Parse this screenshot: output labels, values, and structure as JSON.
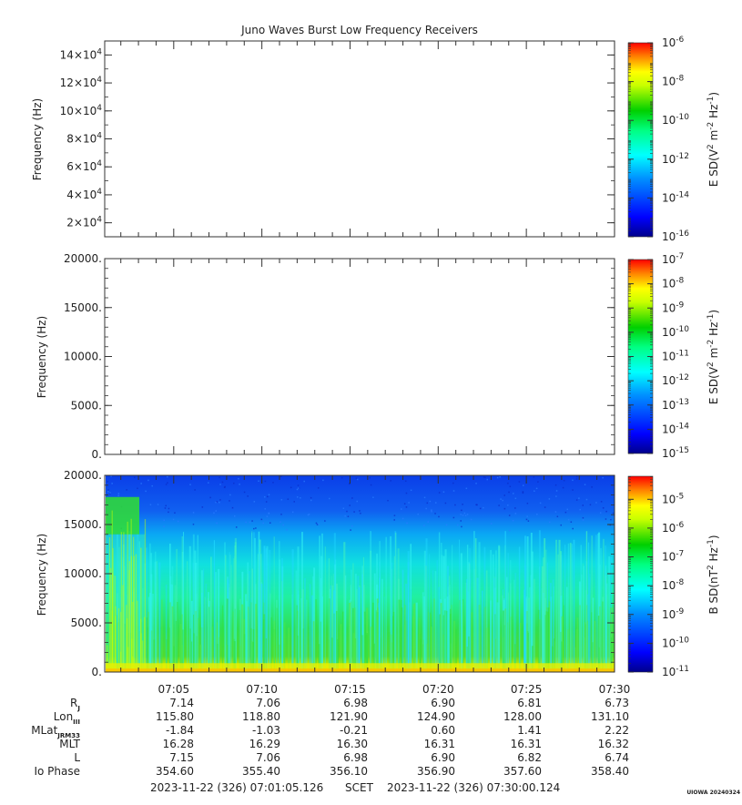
{
  "title": "Juno Waves Burst Low Frequency Receivers",
  "footer": {
    "start": "2023-11-22 (326) 07:01:05.126",
    "scet": "SCET",
    "end": "2023-11-22 (326) 07:30:00.124",
    "credit": "UIOWA 20240324"
  },
  "chart_data": [
    {
      "type": "heatmap",
      "title": "Juno Waves Burst Low Frequency Receivers",
      "ylabel": "Frequency (Hz)",
      "ylim": [
        10000,
        150000
      ],
      "yticks": [
        {
          "value": 20000,
          "label": "2×10",
          "exp": "4"
        },
        {
          "value": 40000,
          "label": "4×10",
          "exp": "4"
        },
        {
          "value": 60000,
          "label": "6×10",
          "exp": "4"
        },
        {
          "value": 80000,
          "label": "8×10",
          "exp": "4"
        },
        {
          "value": 100000,
          "label": "10×10",
          "exp": "4"
        },
        {
          "value": 120000,
          "label": "12×10",
          "exp": "4"
        },
        {
          "value": 140000,
          "label": "14×10",
          "exp": "4"
        }
      ],
      "xlim": [
        "07:01:05",
        "07:30:00"
      ],
      "data": "no data (blank)",
      "colorbar": {
        "label": "E SD(V",
        "label_parts": [
          "E SD(V",
          "2",
          " m",
          "-2",
          " Hz",
          "-1",
          ")"
        ],
        "scale": "log",
        "range": [
          -16,
          -6
        ],
        "ticks": [
          {
            "exp": -16
          },
          {
            "exp": -14
          },
          {
            "exp": -12
          },
          {
            "exp": -10
          },
          {
            "exp": -8
          },
          {
            "exp": -6
          }
        ],
        "tick_base": "10"
      }
    },
    {
      "type": "heatmap",
      "ylabel": "Frequency (Hz)",
      "ylim": [
        0,
        20000
      ],
      "yticks": [
        {
          "value": 0,
          "label": "0."
        },
        {
          "value": 5000,
          "label": "5000."
        },
        {
          "value": 10000,
          "label": "10000."
        },
        {
          "value": 15000,
          "label": "15000."
        },
        {
          "value": 20000,
          "label": "20000."
        }
      ],
      "xlim": [
        "07:01:05",
        "07:30:00"
      ],
      "data": "no data (blank)",
      "colorbar": {
        "label_parts": [
          "E SD(V",
          "2",
          " m",
          "-2",
          " Hz",
          "-1",
          ")"
        ],
        "scale": "log",
        "range": [
          -15,
          -7
        ],
        "ticks": [
          {
            "exp": -15
          },
          {
            "exp": -14
          },
          {
            "exp": -13
          },
          {
            "exp": -12
          },
          {
            "exp": -11
          },
          {
            "exp": -10
          },
          {
            "exp": -9
          },
          {
            "exp": -8
          },
          {
            "exp": -7
          }
        ],
        "tick_base": "10"
      }
    },
    {
      "type": "heatmap",
      "ylabel": "Frequency (Hz)",
      "ylim": [
        0,
        20000
      ],
      "yticks": [
        {
          "value": 0,
          "label": "0."
        },
        {
          "value": 5000,
          "label": "5000."
        },
        {
          "value": 10000,
          "label": "10000."
        },
        {
          "value": 15000,
          "label": "15000."
        },
        {
          "value": 20000,
          "label": "20000."
        }
      ],
      "xlim": [
        "07:01:05",
        "07:30:00"
      ],
      "xticks": [
        "07:05",
        "07:10",
        "07:15",
        "07:20",
        "07:25",
        "07:30"
      ],
      "data": "magnetic spectral density: strongest (yellow-orange) below ~1 kHz, green band ~1-5 kHz, cyan emission to ~10-14 kHz, band near 15-17 kHz before 07:03",
      "colorbar": {
        "label_parts": [
          "B SD(nT",
          "2",
          " Hz",
          "-1",
          ")"
        ],
        "scale": "log",
        "range": [
          -11,
          -4.2
        ],
        "ticks": [
          {
            "exp": -11
          },
          {
            "exp": -10
          },
          {
            "exp": -9
          },
          {
            "exp": -8
          },
          {
            "exp": -7
          },
          {
            "exp": -6
          },
          {
            "exp": -5
          }
        ],
        "tick_base": "10"
      }
    }
  ],
  "ephemeris": {
    "rows": [
      {
        "label": "R",
        "sub": "J",
        "values": [
          "7.14",
          "7.06",
          "6.98",
          "6.90",
          "6.81",
          "6.73"
        ]
      },
      {
        "label": "Lon",
        "sub": "III",
        "values": [
          "115.80",
          "118.80",
          "121.90",
          "124.90",
          "128.00",
          "131.10"
        ]
      },
      {
        "label": "MLat",
        "sub": "JRM33",
        "values": [
          "-1.84",
          "-1.03",
          "-0.21",
          "0.60",
          "1.41",
          "2.22"
        ]
      },
      {
        "label": "MLT",
        "sub": "",
        "values": [
          "16.28",
          "16.29",
          "16.30",
          "16.31",
          "16.31",
          "16.32"
        ]
      },
      {
        "label": "L",
        "sub": "",
        "values": [
          "7.15",
          "7.06",
          "6.98",
          "6.90",
          "6.82",
          "6.74"
        ]
      },
      {
        "label": "Io Phase",
        "sub": "",
        "values": [
          "354.60",
          "355.40",
          "356.10",
          "356.90",
          "357.60",
          "358.40"
        ]
      }
    ]
  },
  "colors": {
    "colormap": [
      "#00008b",
      "#0000ff",
      "#0080ff",
      "#00ffff",
      "#00ff80",
      "#00d000",
      "#ffff00",
      "#ff8000",
      "#ff0000"
    ]
  }
}
